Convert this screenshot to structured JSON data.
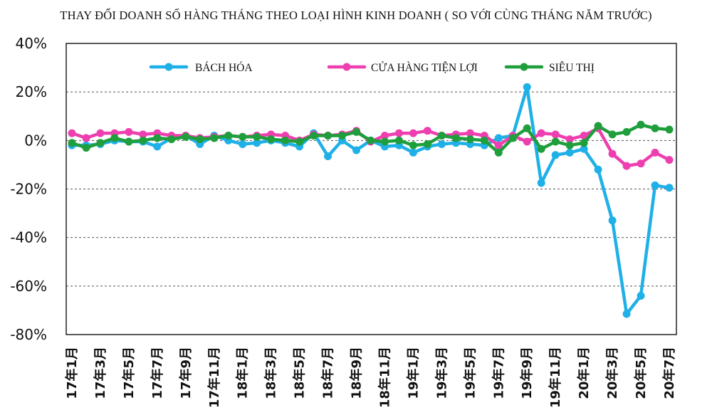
{
  "chart_data": {
    "type": "line",
    "title": "THAY ĐỔI DOANH SỐ HÀNG THÁNG THEO LOẠI HÌNH KINH DOANH ( SO VỚI CÙNG THÁNG NĂM TRƯỚC)",
    "xlabel": "",
    "ylabel": "",
    "ylim": [
      -80,
      40
    ],
    "yticks": [
      40,
      20,
      0,
      -20,
      -40,
      -60,
      -80
    ],
    "ytick_labels": [
      "40%",
      "20%",
      "0%",
      "-20%",
      "-40%",
      "-60%",
      "-80%"
    ],
    "grid": "horizontal dashed",
    "legend_position": "top",
    "x": [
      "17年1月",
      "17年2月",
      "17年3月",
      "17年4月",
      "17年5月",
      "17年6月",
      "17年7月",
      "17年8月",
      "17年9月",
      "17年10月",
      "17年11月",
      "17年12月",
      "18年1月",
      "18年2月",
      "18年3月",
      "18年4月",
      "18年5月",
      "18年6月",
      "18年7月",
      "18年8月",
      "18年9月",
      "18年10月",
      "18年11月",
      "18年12月",
      "19年1月",
      "19年2月",
      "19年3月",
      "19年4月",
      "19年5月",
      "19年6月",
      "19年7月",
      "19年8月",
      "19年9月",
      "19年10月",
      "19年11月",
      "19年12月",
      "20年1月",
      "20年2月",
      "20年3月",
      "20年4月",
      "20年5月",
      "20年6月",
      "20年7月"
    ],
    "xtick_labels": [
      "17年1月",
      "17年3月",
      "17年5月",
      "17年7月",
      "17年9月",
      "17年11月",
      "18年1月",
      "18年3月",
      "18年5月",
      "18年7月",
      "18年9月",
      "18年11月",
      "19年1月",
      "19年3月",
      "19年5月",
      "19年7月",
      "19年9月",
      "19年11月",
      "20年1月",
      "20年3月",
      "20年5月",
      "20年7月"
    ],
    "series": [
      {
        "name": "BÁCH HÓA",
        "color": "#1fb0e8",
        "values": [
          -2,
          -2,
          -1.5,
          0,
          -0.5,
          -0.5,
          -2.5,
          1,
          2,
          -1.5,
          2,
          0,
          -1.5,
          -1,
          0,
          -1,
          -2.5,
          3,
          -6.5,
          0,
          -4,
          0,
          -2.5,
          -2,
          -5,
          -2.5,
          -1.5,
          -1,
          -1.5,
          -2,
          1,
          2,
          22,
          -17.5,
          -6,
          -5,
          -3.5,
          -12,
          -33,
          -71.5,
          -64,
          -18.5,
          -19.5
        ]
      },
      {
        "name": "CỬA HÀNG TIỆN LỢI",
        "color": "#ee3fb0",
        "values": [
          3,
          1,
          3,
          3,
          3.5,
          2.5,
          3,
          2,
          2,
          1,
          1.5,
          2,
          1.5,
          2,
          2.5,
          2,
          0,
          2.5,
          2,
          2.5,
          4,
          -0.5,
          2,
          3,
          3,
          4,
          2,
          2.5,
          3,
          2,
          -2,
          2,
          -0.5,
          3,
          2.5,
          0.5,
          2,
          5,
          -5.5,
          -10.5,
          -9.5,
          -5,
          -8
        ]
      },
      {
        "name": "SIÊU THỊ",
        "color": "#1f9e3c",
        "values": [
          -1,
          -3,
          -1,
          1,
          -0.5,
          0,
          1,
          0.5,
          1.5,
          0.5,
          1,
          2,
          1.5,
          1.5,
          0.5,
          0,
          -0.5,
          2,
          2,
          2,
          3.5,
          0,
          -0.5,
          0,
          -2,
          -1.5,
          2,
          1,
          0.5,
          0,
          -5,
          1,
          5,
          -3.5,
          -0.5,
          -2,
          -1,
          6,
          2.5,
          3.5,
          6.5,
          5,
          4.5
        ]
      }
    ]
  }
}
